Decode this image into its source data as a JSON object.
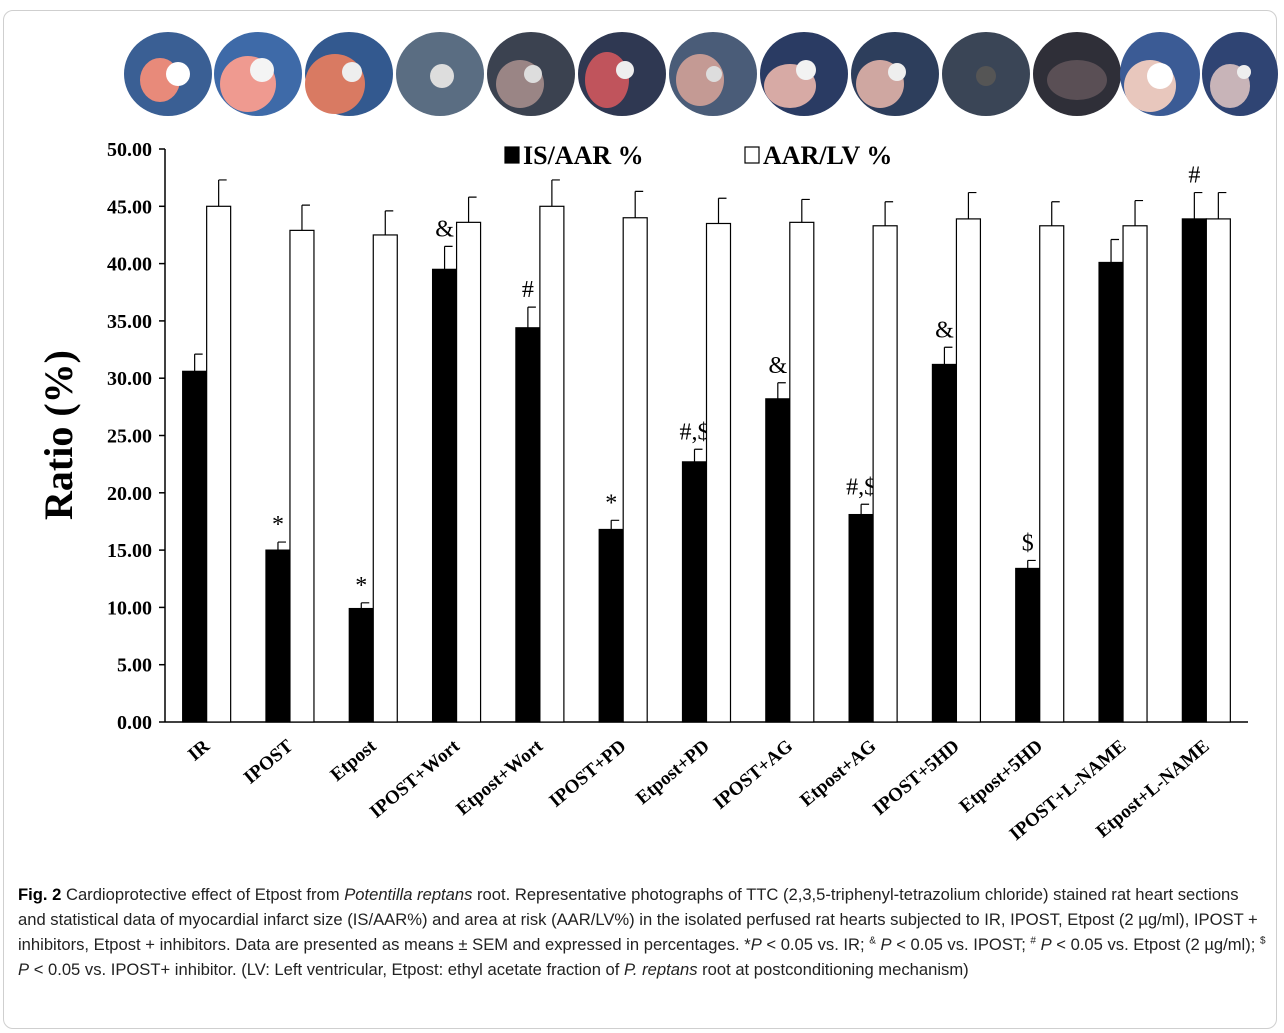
{
  "chart_data": {
    "type": "bar",
    "ylabel": "Ratio (%)",
    "categories": [
      "IR",
      "IPOST",
      "Etpost",
      "IPOST+Wort",
      "Etpost+Wort",
      "IPOST+PD",
      "Etpost+PD",
      "IPOST+AG",
      "Etpost+AG",
      "IPOST+5HD",
      "Etpost+5HD",
      "IPOST+L-NAME",
      "Etpost+L-NAME"
    ],
    "series": [
      {
        "name": "IS/AAR %",
        "color": "#000000",
        "values": [
          30.6,
          15.0,
          9.9,
          39.5,
          34.4,
          16.8,
          22.7,
          28.2,
          18.1,
          31.2,
          13.4,
          40.1,
          43.9
        ],
        "errors": [
          1.5,
          0.7,
          0.5,
          2.0,
          1.8,
          0.8,
          1.1,
          1.4,
          0.9,
          1.5,
          0.7,
          2.0,
          2.3
        ],
        "annotations": [
          null,
          "*",
          "*",
          "&",
          "#",
          "*",
          "#,$",
          "&",
          "#,$",
          "&",
          "$",
          null,
          "#"
        ]
      },
      {
        "name": "AAR/LV %",
        "color": "#ffffff",
        "values": [
          45.0,
          42.9,
          42.5,
          43.6,
          45.0,
          44.0,
          43.5,
          43.6,
          43.3,
          43.9,
          43.3,
          43.3,
          43.9
        ],
        "errors": [
          2.3,
          2.2,
          2.1,
          2.2,
          2.3,
          2.3,
          2.2,
          2.0,
          2.1,
          2.3,
          2.1,
          2.2,
          2.3
        ],
        "annotations": [
          null,
          null,
          null,
          null,
          null,
          null,
          null,
          null,
          null,
          null,
          null,
          null,
          null
        ]
      }
    ],
    "ylim": [
      0,
      50
    ],
    "yticks": [
      {
        "value": 0,
        "label": "0.00"
      },
      {
        "value": 5,
        "label": "5.00"
      },
      {
        "value": 10,
        "label": "10.00"
      },
      {
        "value": 15,
        "label": "15.00"
      },
      {
        "value": 20,
        "label": "20.00"
      },
      {
        "value": 25,
        "label": "25.00"
      },
      {
        "value": 30,
        "label": "30.00"
      },
      {
        "value": 35,
        "label": "35.00"
      },
      {
        "value": 40,
        "label": "40.00"
      },
      {
        "value": 45,
        "label": "45.00"
      },
      {
        "value": 50,
        "label": "50.00"
      }
    ],
    "grid": false,
    "legend": "top"
  },
  "caption": {
    "parts": [
      {
        "text": "Fig. 2",
        "style": "b"
      },
      {
        "text": "  Cardioprotective effect of Etpost from ",
        "style": "n"
      },
      {
        "text": "Potentilla reptans",
        "style": "i"
      },
      {
        "text": " root. Representative photographs of TTC (2,3,5-triphenyl-tetrazolium chloride) stained rat heart sections and statistical data of myocardial infarct size (IS/AAR%) and area at risk (AAR/LV%) in the isolated perfused rat hearts subjected to IR, IPOST, Etpost (2 µg/ml), IPOST + inhibitors, Etpost + inhibitors. Data are presented as means ± SEM and expressed in percentages. *",
        "style": "n"
      },
      {
        "text": "P",
        "style": "i"
      },
      {
        "text": " < 0.05 vs. IR; ",
        "style": "n"
      },
      {
        "text": "&",
        "style": "sup"
      },
      {
        "text": " P",
        "style": "i"
      },
      {
        "text": " < 0.05 vs. IPOST; ",
        "style": "n"
      },
      {
        "text": "#",
        "style": "sup"
      },
      {
        "text": " P",
        "style": "i"
      },
      {
        "text": " < 0.05 vs. Etpost (2 µg/ml); ",
        "style": "n"
      },
      {
        "text": "$",
        "style": "sup"
      },
      {
        "text": " P",
        "style": "i"
      },
      {
        "text": " < 0.05 vs. IPOST+ inhibitor. (LV: Left ventricular, Etpost: ethyl acetate fraction of ",
        "style": "n"
      },
      {
        "text": "P. reptans",
        "style": "i"
      },
      {
        "text": " root at postconditioning mechanism)",
        "style": "n"
      }
    ]
  }
}
